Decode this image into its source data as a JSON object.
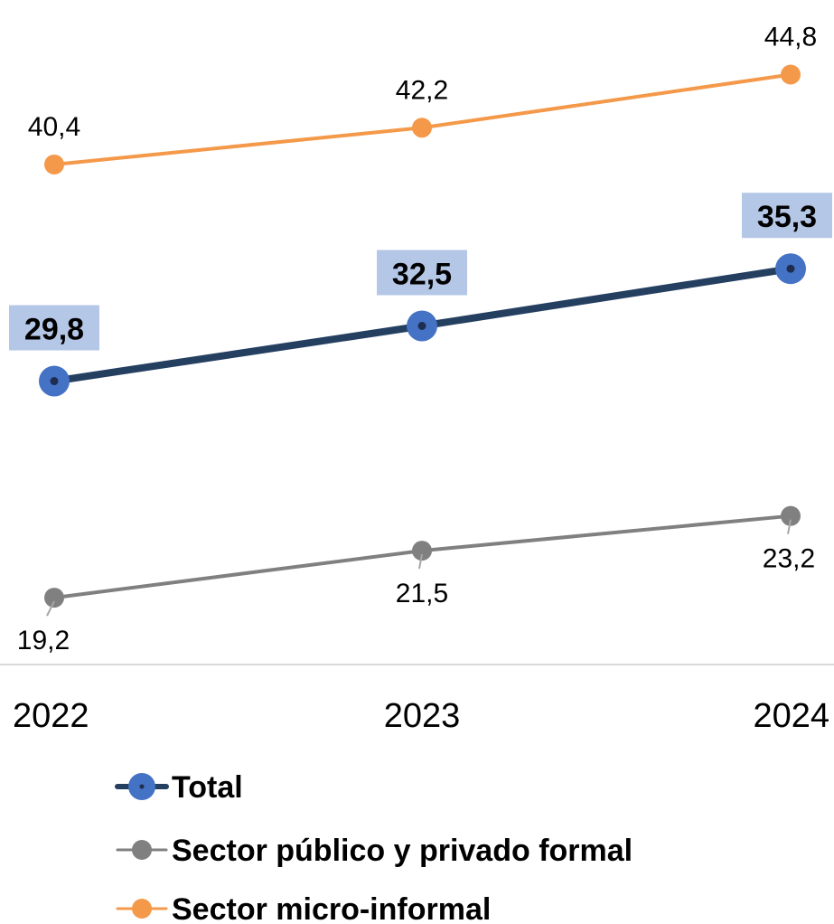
{
  "chart_data": {
    "type": "line",
    "title": "",
    "xlabel": "",
    "ylabel": "",
    "categories": [
      "2022",
      "2023",
      "2024"
    ],
    "ylim": [
      0,
      50
    ],
    "grid": false,
    "legend_position": "bottom",
    "series": [
      {
        "name": "Total",
        "values": [
          29.8,
          32.5,
          35.3
        ],
        "labels": [
          "29,8",
          "32,5",
          "35,3"
        ],
        "color": "#243F60",
        "marker_color": "#4472C4",
        "label_highlight": "#B4C7E7",
        "bold": true
      },
      {
        "name": "Sector público y privado formal",
        "values": [
          19.2,
          21.5,
          23.2
        ],
        "labels": [
          "19,2",
          "21,5",
          "23,2"
        ],
        "color": "#808080",
        "marker_color": "#808080",
        "bold": false
      },
      {
        "name": "Sector micro-informal",
        "values": [
          40.4,
          42.2,
          44.8
        ],
        "labels": [
          "40,4",
          "42,2",
          "44,8"
        ],
        "color": "#F4994A",
        "marker_color": "#F4994A",
        "bold": false
      }
    ]
  }
}
